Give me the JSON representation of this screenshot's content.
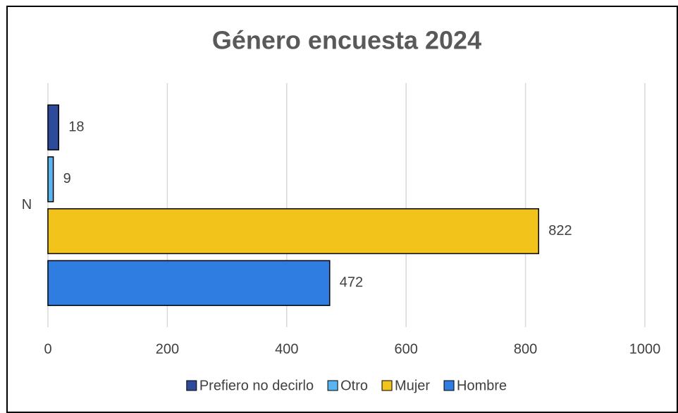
{
  "chart_data": {
    "type": "bar",
    "orientation": "horizontal",
    "title": "Género encuesta 2024",
    "categories": [
      "N"
    ],
    "series": [
      {
        "name": "Prefiero no decirlo",
        "color": "#2e4a9a",
        "values": [
          18
        ]
      },
      {
        "name": "Otro",
        "color": "#5ab4f0",
        "values": [
          9
        ]
      },
      {
        "name": "Mujer",
        "color": "#f2c31a",
        "values": [
          822
        ]
      },
      {
        "name": "Hombre",
        "color": "#2f7de0",
        "values": [
          472
        ]
      }
    ],
    "xlim": [
      0,
      1000
    ],
    "xticks": [
      0,
      200,
      400,
      600,
      800,
      1000
    ],
    "grid": true,
    "legend": "bottom"
  }
}
